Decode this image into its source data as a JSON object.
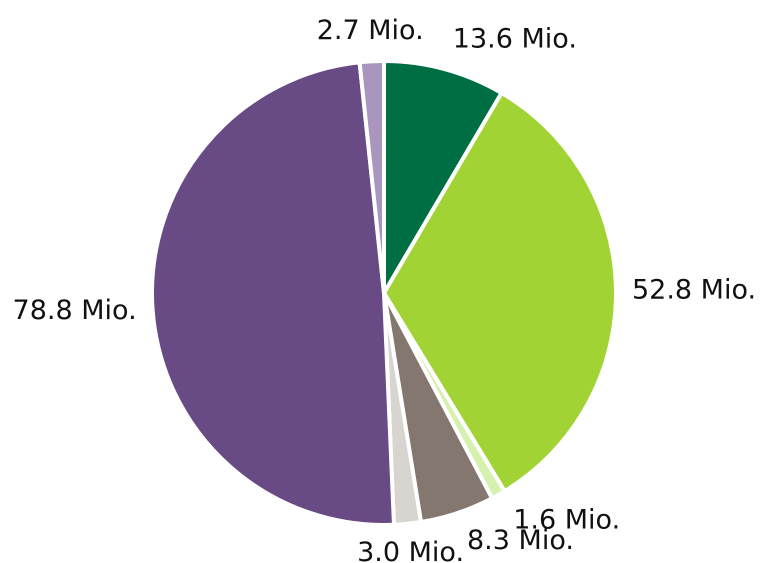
{
  "chart_data": {
    "type": "pie",
    "values": [
      13.6,
      52.8,
      1.6,
      8.3,
      3.0,
      78.8,
      2.7
    ],
    "value_labels": [
      "13.6 Mio.",
      "52.8 Mio.",
      "1.6 Mio.",
      "8.3 Mio.",
      "3.0 Mio.",
      "78.8 Mio.",
      "2.7 Mio."
    ],
    "colors": [
      "#006e43",
      "#a2d335",
      "#d6f0b0",
      "#847770",
      "#d8d4cf",
      "#684b85",
      "#a996be"
    ]
  }
}
